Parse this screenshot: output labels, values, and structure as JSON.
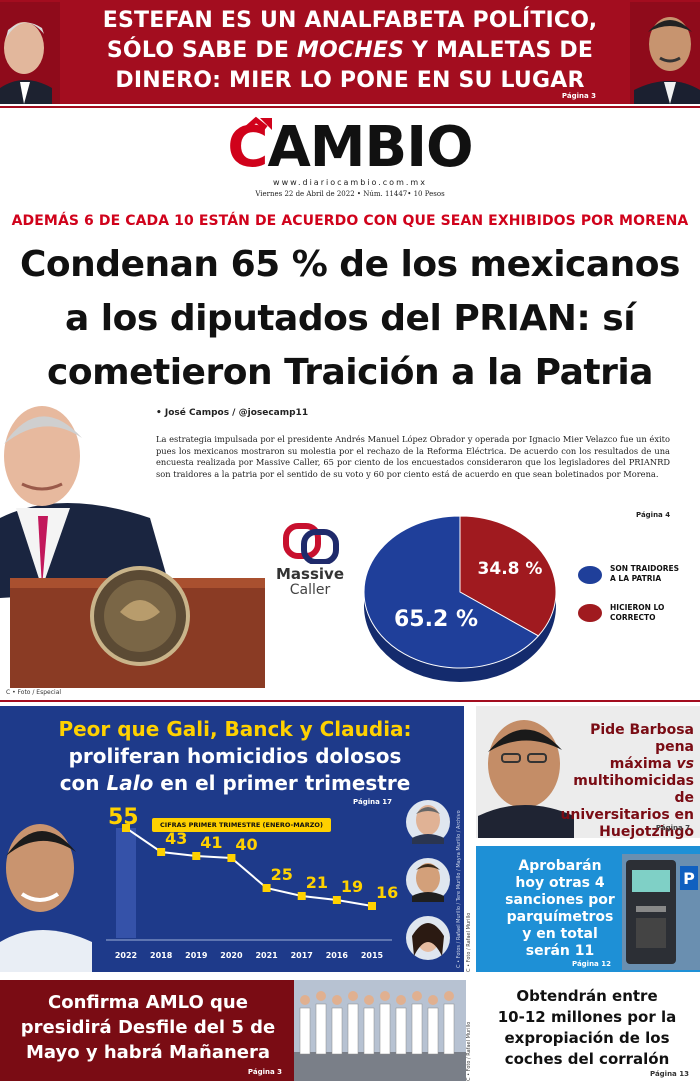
{
  "top_banner": {
    "headline_1": "ESTEFAN ES UN ANALFABETA POLÍTICO,",
    "headline_2a": "SÓLO SABE DE ",
    "headline_2b": "MOCHES",
    "headline_2c": " Y MALETAS DE",
    "headline_3": "DINERO: MIER LO PONE EN SU LUGAR",
    "page_ref": "Página 3"
  },
  "masthead": {
    "logo_c": "C",
    "logo_rest": "AMBIO",
    "website": "www.diariocambio.com.mx",
    "date_line": "Viernes 22 de Abril de 2022 • Núm. 11447• 10 Pesos"
  },
  "main_story": {
    "kicker": "ADEMÁS 6 DE CADA 10 ESTÁN DE ACUERDO CON QUE SEAN EXHIBIDOS POR MORENA",
    "headline_1": "Condenan 65 % de los mexicanos",
    "headline_2": "a los diputados del PRIAN: sí",
    "headline_3": "cometieron Traición a la Patria",
    "byline": "• José Campos / @josecamp11",
    "body": "La estrategia impulsada por el presidente Andrés Manuel López Obrador y operada por Ignacio Mier Velazco fue un éxito pues los mexicanos mostraron su molestia por el rechazo de la Reforma Eléctrica. De acuerdo con los resultados de una encuesta realizada por Massive Caller, 65 por ciento de los encuestados consideraron que los legisladores del PRIANRD son traidores a la patria por el sentido de su voto y 60 por ciento está de acuerdo en que sean boletinados por Morena.",
    "page_ref": "Página 4",
    "photo_credit": "C • Foto / Especial",
    "pollster_name": "Massive",
    "pollster_sub": "Caller"
  },
  "pie_chart": {
    "type": "pie",
    "slices": [
      {
        "label": "SON TRAIDORES A LA PATRIA",
        "label_1": "SON TRAIDORES",
        "label_2": "A LA PATRIA",
        "value": 65.2,
        "value_label": "65.2 %",
        "color": "#1f3f9a"
      },
      {
        "label": "HICIERON LO CORRECTO",
        "label_1": "HICIERON LO",
        "label_2": "CORRECTO",
        "value": 34.8,
        "value_label": "34.8 %",
        "color": "#a01a1f"
      }
    ]
  },
  "homicide_story": {
    "headline_1": "Peor que Gali, Banck y Claudia:",
    "headline_2": "proliferan homicidios dolosos",
    "headline_3a": "con ",
    "headline_3b": "Lalo",
    "headline_3c": " en el primer trimestre",
    "page_ref": "Página 17",
    "chart_label": "CIFRAS PRIMER TRIMESTRE (ENERO-MARZO)",
    "vertical_credit": "C • Fotos / Rafael Murillo / Tere Murillo / Mayra Murillo / Archivo"
  },
  "chart_data": {
    "type": "line",
    "title": "CIFRAS PRIMER TRIMESTRE (ENERO-MARZO)",
    "categories": [
      "2022",
      "2018",
      "2019",
      "2020",
      "2021",
      "2017",
      "2016",
      "2015"
    ],
    "values": [
      55,
      43,
      41,
      40,
      25,
      21,
      19,
      16
    ],
    "highlight_first": true
  },
  "barbosa_story": {
    "line_1": "Pide Barbosa pena",
    "line_2": "máxima ",
    "line_2b": "vs",
    "line_3": "multihomicidas de",
    "line_4": "universitarios en",
    "line_5": "Huejotzingo",
    "page_ref": "Página 7"
  },
  "parking_story": {
    "line_1": "Aprobarán",
    "line_2": "hoy otras 4",
    "line_3": "sanciones por",
    "line_4": "parquímetros",
    "line_5": "y en total",
    "line_6": "serán 11",
    "page_ref": "Página 12",
    "vertical_credit": "C • Foto / Rafael Murillo"
  },
  "amlo_story": {
    "line_1": "Confirma AMLO que",
    "line_2": "presidirá Desfile del 5 de",
    "line_3": "Mayo y habrá Mañanera",
    "page_ref": "Página 3",
    "vertical_credit": "C • Foto / Rafael Murillo"
  },
  "corralon_story": {
    "line_1": "Obtendrán entre",
    "line_2": "10-12 millones por la",
    "line_3": "expropiación de los",
    "line_4": "coches del corralón",
    "page_ref": "Página 13"
  }
}
